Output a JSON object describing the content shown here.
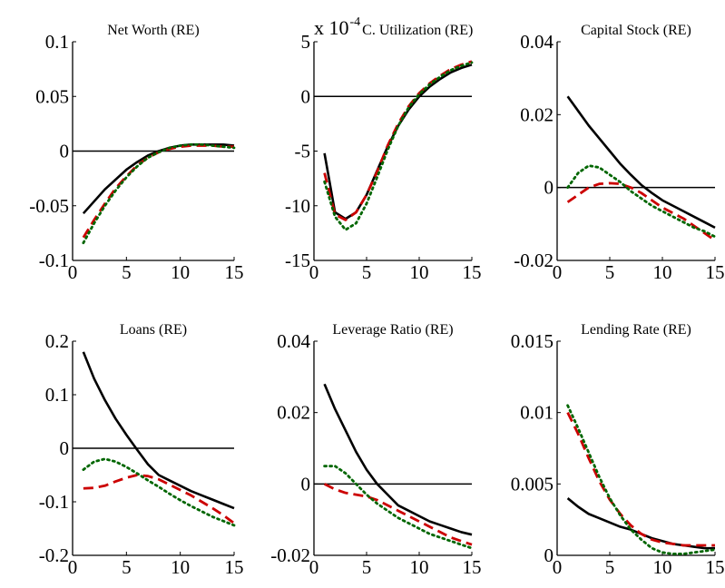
{
  "chart_data": [
    {
      "type": "line",
      "title": "Net Worth (RE)",
      "x": [
        1,
        2,
        3,
        4,
        5,
        6,
        7,
        8,
        9,
        10,
        11,
        12,
        13,
        14,
        15
      ],
      "xlim": [
        0,
        15
      ],
      "ylim": [
        -0.1,
        0.1
      ],
      "xticks": [
        0,
        5,
        10,
        15
      ],
      "xtick_labels": [
        "0",
        "5",
        "10",
        "15"
      ],
      "yticks": [
        -0.1,
        -0.05,
        0,
        0.05,
        0.1
      ],
      "ytick_labels": [
        "-0.1",
        "-0.05",
        "0",
        "0.05",
        "0.1"
      ],
      "zero_line": true,
      "grid": false,
      "series": [
        {
          "color": "#000000",
          "dash": "solid",
          "values": [
            -0.057,
            -0.046,
            -0.035,
            -0.026,
            -0.017,
            -0.01,
            -0.004,
            0.0,
            0.003,
            0.005,
            0.006,
            0.006,
            0.006,
            0.006,
            0.005
          ]
        },
        {
          "color": "#cc0000",
          "dash": "dashed",
          "values": [
            -0.079,
            -0.063,
            -0.048,
            -0.034,
            -0.023,
            -0.013,
            -0.006,
            -0.001,
            0.002,
            0.004,
            0.005,
            0.005,
            0.005,
            0.004,
            0.004
          ]
        },
        {
          "color": "#006600",
          "dash": "dotted",
          "values": [
            -0.084,
            -0.066,
            -0.05,
            -0.036,
            -0.024,
            -0.014,
            -0.006,
            -0.001,
            0.003,
            0.005,
            0.006,
            0.006,
            0.005,
            0.004,
            0.003
          ]
        }
      ]
    },
    {
      "type": "line",
      "title": "C. Utilization (RE)",
      "y_multiplier": "x 10",
      "y_multiplier_exponent": "-4",
      "x": [
        1,
        2,
        3,
        4,
        5,
        6,
        7,
        8,
        9,
        10,
        11,
        12,
        13,
        14,
        15
      ],
      "xlim": [
        0,
        15
      ],
      "ylim": [
        -15,
        5
      ],
      "xticks": [
        0,
        5,
        10,
        15
      ],
      "xtick_labels": [
        "0",
        "5",
        "10",
        "15"
      ],
      "yticks": [
        -15,
        -10,
        -5,
        0,
        5
      ],
      "ytick_labels": [
        "-15",
        "-10",
        "-5",
        "0",
        "5"
      ],
      "zero_line": true,
      "grid": false,
      "series": [
        {
          "color": "#000000",
          "dash": "solid",
          "values": [
            -5.2,
            -10.6,
            -11.2,
            -10.6,
            -9.0,
            -6.8,
            -4.6,
            -2.7,
            -1.2,
            0.0,
            0.9,
            1.6,
            2.2,
            2.6,
            2.9
          ]
        },
        {
          "color": "#cc0000",
          "dash": "dashed",
          "values": [
            -7.0,
            -10.8,
            -11.3,
            -10.6,
            -9.0,
            -6.9,
            -4.5,
            -2.5,
            -0.9,
            0.3,
            1.2,
            1.9,
            2.5,
            2.9,
            3.2
          ]
        },
        {
          "color": "#006600",
          "dash": "dotted",
          "values": [
            -7.8,
            -11.0,
            -12.2,
            -11.6,
            -9.8,
            -7.4,
            -4.9,
            -2.7,
            -1.0,
            0.2,
            1.1,
            1.8,
            2.4,
            2.8,
            3.1
          ]
        }
      ]
    },
    {
      "type": "line",
      "title": "Capital Stock (RE)",
      "x": [
        1,
        2,
        3,
        4,
        5,
        6,
        7,
        8,
        9,
        10,
        11,
        12,
        13,
        14,
        15
      ],
      "xlim": [
        0,
        15
      ],
      "ylim": [
        -0.02,
        0.04
      ],
      "xticks": [
        0,
        5,
        10,
        15
      ],
      "xtick_labels": [
        "0",
        "5",
        "10",
        "15"
      ],
      "yticks": [
        -0.02,
        0,
        0.02,
        0.04
      ],
      "ytick_labels": [
        "-0.02",
        "0",
        "0.02",
        "0.04"
      ],
      "zero_line": true,
      "grid": false,
      "series": [
        {
          "color": "#000000",
          "dash": "solid",
          "values": [
            0.025,
            0.021,
            0.017,
            0.0135,
            0.01,
            0.0065,
            0.0035,
            0.0007,
            -0.0015,
            -0.0035,
            -0.005,
            -0.0065,
            -0.008,
            -0.0095,
            -0.011
          ]
        },
        {
          "color": "#cc0000",
          "dash": "dashed",
          "values": [
            -0.004,
            -0.002,
            0.0,
            0.001,
            0.0012,
            0.001,
            0.0,
            -0.0015,
            -0.0035,
            -0.0055,
            -0.007,
            -0.0085,
            -0.0105,
            -0.0125,
            -0.0145
          ]
        },
        {
          "color": "#006600",
          "dash": "dotted",
          "values": [
            0.0,
            0.004,
            0.006,
            0.0055,
            0.0035,
            0.0015,
            -0.001,
            -0.003,
            -0.005,
            -0.0065,
            -0.008,
            -0.0095,
            -0.011,
            -0.012,
            -0.0135
          ]
        }
      ]
    },
    {
      "type": "line",
      "title": "Loans (RE)",
      "x": [
        1,
        2,
        3,
        4,
        5,
        6,
        7,
        8,
        9,
        10,
        11,
        12,
        13,
        14,
        15
      ],
      "xlim": [
        0,
        15
      ],
      "ylim": [
        -0.2,
        0.2
      ],
      "xticks": [
        0,
        5,
        10,
        15
      ],
      "xtick_labels": [
        "0",
        "5",
        "10",
        "15"
      ],
      "yticks": [
        -0.2,
        -0.1,
        0,
        0.1,
        0.2
      ],
      "ytick_labels": [
        "-0.2",
        "-0.1",
        "0",
        "0.1",
        "0.2"
      ],
      "zero_line": true,
      "grid": false,
      "series": [
        {
          "color": "#000000",
          "dash": "solid",
          "values": [
            0.18,
            0.13,
            0.09,
            0.055,
            0.025,
            -0.003,
            -0.03,
            -0.05,
            -0.06,
            -0.07,
            -0.08,
            -0.088,
            -0.096,
            -0.104,
            -0.112
          ]
        },
        {
          "color": "#cc0000",
          "dash": "dashed",
          "values": [
            -0.075,
            -0.074,
            -0.07,
            -0.062,
            -0.055,
            -0.05,
            -0.052,
            -0.058,
            -0.068,
            -0.078,
            -0.088,
            -0.1,
            -0.112,
            -0.125,
            -0.14
          ]
        },
        {
          "color": "#006600",
          "dash": "dotted",
          "values": [
            -0.04,
            -0.025,
            -0.02,
            -0.025,
            -0.035,
            -0.047,
            -0.06,
            -0.072,
            -0.085,
            -0.097,
            -0.108,
            -0.118,
            -0.128,
            -0.136,
            -0.144
          ]
        }
      ]
    },
    {
      "type": "line",
      "title": "Leverage Ratio (RE)",
      "x": [
        1,
        2,
        3,
        4,
        5,
        6,
        7,
        8,
        9,
        10,
        11,
        12,
        13,
        14,
        15
      ],
      "xlim": [
        0,
        15
      ],
      "ylim": [
        -0.02,
        0.04
      ],
      "xticks": [
        0,
        5,
        10,
        15
      ],
      "xtick_labels": [
        "0",
        "5",
        "10",
        "15"
      ],
      "yticks": [
        -0.02,
        0,
        0.02,
        0.04
      ],
      "ytick_labels": [
        "-0.02",
        "0",
        "0.02",
        "0.04"
      ],
      "zero_line": true,
      "grid": false,
      "series": [
        {
          "color": "#000000",
          "dash": "solid",
          "values": [
            0.028,
            0.021,
            0.015,
            0.009,
            0.004,
            0.0,
            -0.003,
            -0.006,
            -0.0075,
            -0.009,
            -0.0105,
            -0.0115,
            -0.0125,
            -0.0135,
            -0.0142
          ]
        },
        {
          "color": "#cc0000",
          "dash": "dashed",
          "values": [
            0.0,
            -0.0015,
            -0.0025,
            -0.003,
            -0.0035,
            -0.0045,
            -0.006,
            -0.0075,
            -0.009,
            -0.0105,
            -0.012,
            -0.0135,
            -0.015,
            -0.016,
            -0.017
          ]
        },
        {
          "color": "#006600",
          "dash": "dotted",
          "values": [
            0.005,
            0.005,
            0.003,
            0.0,
            -0.003,
            -0.0055,
            -0.0075,
            -0.0095,
            -0.011,
            -0.0125,
            -0.014,
            -0.015,
            -0.016,
            -0.017,
            -0.018
          ]
        }
      ]
    },
    {
      "type": "line",
      "title": "Lending Rate (RE)",
      "x": [
        1,
        2,
        3,
        4,
        5,
        6,
        7,
        8,
        9,
        10,
        11,
        12,
        13,
        14,
        15
      ],
      "xlim": [
        0,
        15
      ],
      "ylim": [
        0,
        0.015
      ],
      "xticks": [
        0,
        5,
        10,
        15
      ],
      "xtick_labels": [
        "0",
        "5",
        "10",
        "15"
      ],
      "yticks": [
        0,
        0.005,
        0.01,
        0.015
      ],
      "ytick_labels": [
        "0",
        "0.005",
        "0.01",
        "0.015"
      ],
      "zero_line": false,
      "grid": false,
      "series": [
        {
          "color": "#000000",
          "dash": "solid",
          "values": [
            0.004,
            0.0034,
            0.0029,
            0.0026,
            0.0023,
            0.002,
            0.0018,
            0.0015,
            0.0012,
            0.001,
            0.0008,
            0.0007,
            0.0006,
            0.0005,
            0.0005
          ]
        },
        {
          "color": "#cc0000",
          "dash": "dashed",
          "values": [
            0.01,
            0.0085,
            0.0068,
            0.0052,
            0.0039,
            0.0029,
            0.0021,
            0.0015,
            0.0011,
            0.0009,
            0.0008,
            0.0007,
            0.0007,
            0.0007,
            0.0007
          ]
        },
        {
          "color": "#006600",
          "dash": "dotted",
          "values": [
            0.0105,
            0.0089,
            0.0072,
            0.0055,
            0.004,
            0.0028,
            0.0018,
            0.0011,
            0.0005,
            0.0002,
            0.0001,
            0.0001,
            0.0002,
            0.0003,
            0.0004
          ]
        }
      ]
    }
  ]
}
